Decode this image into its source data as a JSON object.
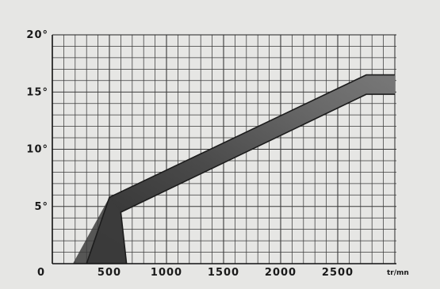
{
  "chart_data": {
    "type": "area",
    "title": "",
    "xlabel": "tr/mn",
    "ylabel": "",
    "xlim": [
      0,
      3000
    ],
    "ylim": [
      0,
      20
    ],
    "x_ticks": [
      0,
      500,
      1000,
      1500,
      2000,
      2500
    ],
    "y_ticks": [
      5,
      10,
      15,
      20
    ],
    "x_tick_labels": [
      "0",
      "500",
      "1000",
      "1500",
      "2000",
      "2500"
    ],
    "y_tick_labels": [
      "5°",
      "10°",
      "15°",
      "20°"
    ],
    "grid": true,
    "band": {
      "upper": [
        [
          300,
          0
        ],
        [
          500,
          5.8
        ],
        [
          2750,
          16.5
        ],
        [
          3000,
          16.5
        ]
      ],
      "lower": [
        [
          650,
          0
        ],
        [
          600,
          4.5
        ],
        [
          2750,
          14.8
        ],
        [
          3000,
          14.8
        ]
      ],
      "left_edge": [
        [
          180,
          0
        ],
        [
          500,
          5.8
        ]
      ]
    },
    "colors": {
      "grid": "#3a3a3a",
      "band_dark": "#3c3c3c",
      "band_mid": "#6e6e6e",
      "band_edge": "#1c1c1c",
      "background": "#e6e6e4"
    }
  }
}
